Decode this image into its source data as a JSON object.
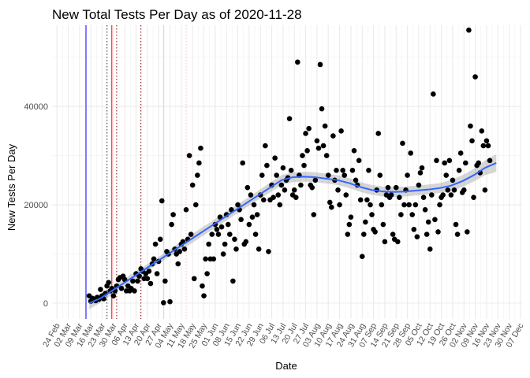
{
  "chart_data": {
    "type": "scatter",
    "title": "New Total Tests Per Day as of 2020-11-28",
    "xlabel": "Date",
    "ylabel": "New Tests Per Day",
    "x_range": [
      "2020-02-21",
      "2020-12-08"
    ],
    "ylim": [
      -3200,
      56500
    ],
    "y_ticks": [
      0,
      20000,
      40000
    ],
    "x_tick_labels": [
      "24 Feb",
      "02 Mar",
      "09 Mar",
      "16 Mar",
      "23 Mar",
      "30 Mar",
      "06 Apr",
      "13 Apr",
      "20 Apr",
      "27 Apr",
      "04 May",
      "11 May",
      "18 May",
      "25 May",
      "01 Jun",
      "08 Jun",
      "15 Jun",
      "22 Jun",
      "29 Jun",
      "06 Jul",
      "13 Jul",
      "20 Jul",
      "27 Jul",
      "03 Aug",
      "10 Aug",
      "17 Aug",
      "24 Aug",
      "31 Aug",
      "07 Sep",
      "14 Sep",
      "21 Sep",
      "28 Sep",
      "05 Oct",
      "12 Oct",
      "19 Oct",
      "26 Oct",
      "02 Nov",
      "09 Nov",
      "16 Nov",
      "23 Nov",
      "30 Nov",
      "07 Dec"
    ],
    "x_tick_dates": [
      "2020-02-24",
      "2020-03-02",
      "2020-03-09",
      "2020-03-16",
      "2020-03-23",
      "2020-03-30",
      "2020-04-06",
      "2020-04-13",
      "2020-04-20",
      "2020-04-27",
      "2020-05-04",
      "2020-05-11",
      "2020-05-18",
      "2020-05-25",
      "2020-06-01",
      "2020-06-08",
      "2020-06-15",
      "2020-06-22",
      "2020-06-29",
      "2020-07-06",
      "2020-07-13",
      "2020-07-20",
      "2020-07-27",
      "2020-08-03",
      "2020-08-10",
      "2020-08-17",
      "2020-08-24",
      "2020-08-31",
      "2020-09-07",
      "2020-09-14",
      "2020-09-21",
      "2020-09-28",
      "2020-10-05",
      "2020-10-12",
      "2020-10-19",
      "2020-10-26",
      "2020-11-02",
      "2020-11-09",
      "2020-11-16",
      "2020-11-23",
      "2020-11-30",
      "2020-12-07"
    ],
    "grid": true,
    "vlines": [
      {
        "date": "2020-03-13",
        "color": "#0000ff",
        "style": "solid"
      },
      {
        "date": "2020-03-26",
        "color": "#333333",
        "style": "dotted"
      },
      {
        "date": "2020-03-29",
        "color": "#ff0000",
        "style": "solid"
      },
      {
        "date": "2020-04-01",
        "color": "#8b0000",
        "style": "dotted"
      },
      {
        "date": "2020-04-16",
        "color": "#8b0000",
        "style": "dotted"
      },
      {
        "date": "2020-04-30",
        "color": "#ffc0cb",
        "style": "solid"
      },
      {
        "date": "2020-05-14",
        "color": "#ffc0cb",
        "style": "dotted"
      }
    ],
    "points": [
      [
        "2020-03-15",
        1500
      ],
      [
        "2020-03-16",
        400
      ],
      [
        "2020-03-17",
        1000
      ],
      [
        "2020-03-18",
        700
      ],
      [
        "2020-03-19",
        500
      ],
      [
        "2020-03-20",
        1200
      ],
      [
        "2020-03-21",
        800
      ],
      [
        "2020-03-22",
        2800
      ],
      [
        "2020-03-23",
        1500
      ],
      [
        "2020-03-24",
        900
      ],
      [
        "2020-03-25",
        2000
      ],
      [
        "2020-03-26",
        3500
      ],
      [
        "2020-03-27",
        4200
      ],
      [
        "2020-03-28",
        2500
      ],
      [
        "2020-03-29",
        3000
      ],
      [
        "2020-03-30",
        1500
      ],
      [
        "2020-03-31",
        2500
      ],
      [
        "2020-04-01",
        3500
      ],
      [
        "2020-04-02",
        4800
      ],
      [
        "2020-04-03",
        5200
      ],
      [
        "2020-04-04",
        3000
      ],
      [
        "2020-04-05",
        5500
      ],
      [
        "2020-04-06",
        4800
      ],
      [
        "2020-04-07",
        2500
      ],
      [
        "2020-04-08",
        3500
      ],
      [
        "2020-04-09",
        2500
      ],
      [
        "2020-04-10",
        3000
      ],
      [
        "2020-04-11",
        4500
      ],
      [
        "2020-04-12",
        2500
      ],
      [
        "2020-04-13",
        6000
      ],
      [
        "2020-04-14",
        4500
      ],
      [
        "2020-04-15",
        5500
      ],
      [
        "2020-04-16",
        7000
      ],
      [
        "2020-04-17",
        6500
      ],
      [
        "2020-04-18",
        5000
      ],
      [
        "2020-04-19",
        6000
      ],
      [
        "2020-04-20",
        5000
      ],
      [
        "2020-04-21",
        6500
      ],
      [
        "2020-04-22",
        4000
      ],
      [
        "2020-04-23",
        8000
      ],
      [
        "2020-04-24",
        9000
      ],
      [
        "2020-04-25",
        12000
      ],
      [
        "2020-04-26",
        6000
      ],
      [
        "2020-04-27",
        8500
      ],
      [
        "2020-04-28",
        13000
      ],
      [
        "2020-04-29",
        20800
      ],
      [
        "2020-04-30",
        100
      ],
      [
        "2020-05-01",
        4500
      ],
      [
        "2020-05-02",
        10500
      ],
      [
        "2020-05-03",
        10000
      ],
      [
        "2020-05-04",
        300
      ],
      [
        "2020-05-05",
        16000
      ],
      [
        "2020-05-06",
        18000
      ],
      [
        "2020-05-07",
        11000
      ],
      [
        "2020-05-08",
        10000
      ],
      [
        "2020-05-09",
        8000
      ],
      [
        "2020-05-10",
        10500
      ],
      [
        "2020-05-11",
        12000
      ],
      [
        "2020-05-12",
        12500
      ],
      [
        "2020-05-13",
        11000
      ],
      [
        "2020-05-14",
        19000
      ],
      [
        "2020-05-15",
        13000
      ],
      [
        "2020-05-16",
        30000
      ],
      [
        "2020-05-17",
        14000
      ],
      [
        "2020-05-18",
        24000
      ],
      [
        "2020-05-19",
        5000
      ],
      [
        "2020-05-20",
        20000
      ],
      [
        "2020-05-21",
        26000
      ],
      [
        "2020-05-22",
        28500
      ],
      [
        "2020-05-23",
        31500
      ],
      [
        "2020-05-24",
        3500
      ],
      [
        "2020-05-25",
        1500
      ],
      [
        "2020-05-26",
        9000
      ],
      [
        "2020-05-27",
        6000
      ],
      [
        "2020-05-28",
        12000
      ],
      [
        "2020-05-29",
        9000
      ],
      [
        "2020-05-30",
        14000
      ],
      [
        "2020-05-31",
        9000
      ],
      [
        "2020-06-01",
        16000
      ],
      [
        "2020-06-02",
        15000
      ],
      [
        "2020-06-03",
        14000
      ],
      [
        "2020-06-04",
        17500
      ],
      [
        "2020-06-05",
        15500
      ],
      [
        "2020-06-06",
        10000
      ],
      [
        "2020-06-07",
        12000
      ],
      [
        "2020-06-08",
        18000
      ],
      [
        "2020-06-09",
        16000
      ],
      [
        "2020-06-10",
        14000
      ],
      [
        "2020-06-11",
        19000
      ],
      [
        "2020-06-12",
        4500
      ],
      [
        "2020-06-13",
        13000
      ],
      [
        "2020-06-14",
        11000
      ],
      [
        "2020-06-15",
        20000
      ],
      [
        "2020-06-16",
        19000
      ],
      [
        "2020-06-17",
        17000
      ],
      [
        "2020-06-18",
        28500
      ],
      [
        "2020-06-19",
        12000
      ],
      [
        "2020-06-20",
        12500
      ],
      [
        "2020-06-21",
        23500
      ],
      [
        "2020-06-22",
        16000
      ],
      [
        "2020-06-23",
        22000
      ],
      [
        "2020-06-24",
        17500
      ],
      [
        "2020-06-25",
        20000
      ],
      [
        "2020-06-26",
        14000
      ],
      [
        "2020-06-27",
        18000
      ],
      [
        "2020-06-28",
        11000
      ],
      [
        "2020-06-29",
        22000
      ],
      [
        "2020-06-30",
        26000
      ],
      [
        "2020-07-01",
        21000
      ],
      [
        "2020-07-02",
        32000
      ],
      [
        "2020-07-03",
        28000
      ],
      [
        "2020-07-04",
        10500
      ],
      [
        "2020-07-05",
        21000
      ],
      [
        "2020-07-06",
        24000
      ],
      [
        "2020-07-07",
        21500
      ],
      [
        "2020-07-08",
        29500
      ],
      [
        "2020-07-09",
        26000
      ],
      [
        "2020-07-10",
        22000
      ],
      [
        "2020-07-11",
        20000
      ],
      [
        "2020-07-12",
        24000
      ],
      [
        "2020-07-13",
        27500
      ],
      [
        "2020-07-14",
        23000
      ],
      [
        "2020-07-15",
        25000
      ],
      [
        "2020-07-16",
        25500
      ],
      [
        "2020-07-17",
        37500
      ],
      [
        "2020-07-18",
        27000
      ],
      [
        "2020-07-19",
        22000
      ],
      [
        "2020-07-20",
        23000
      ],
      [
        "2020-07-21",
        21500
      ],
      [
        "2020-07-22",
        49000
      ],
      [
        "2020-07-23",
        26000
      ],
      [
        "2020-07-24",
        24000
      ],
      [
        "2020-07-25",
        30000
      ],
      [
        "2020-07-26",
        28000
      ],
      [
        "2020-07-27",
        34500
      ],
      [
        "2020-07-28",
        31000
      ],
      [
        "2020-07-29",
        35500
      ],
      [
        "2020-07-30",
        24000
      ],
      [
        "2020-07-31",
        23500
      ],
      [
        "2020-08-01",
        18000
      ],
      [
        "2020-08-02",
        25000
      ],
      [
        "2020-08-03",
        33000
      ],
      [
        "2020-08-04",
        31500
      ],
      [
        "2020-08-05",
        48500
      ],
      [
        "2020-08-06",
        39500
      ],
      [
        "2020-08-07",
        32000
      ],
      [
        "2020-08-08",
        36000
      ],
      [
        "2020-08-09",
        30000
      ],
      [
        "2020-08-10",
        26000
      ],
      [
        "2020-08-11",
        20500
      ],
      [
        "2020-08-12",
        19500
      ],
      [
        "2020-08-13",
        34000
      ],
      [
        "2020-08-14",
        25000
      ],
      [
        "2020-08-15",
        27000
      ],
      [
        "2020-08-16",
        23000
      ],
      [
        "2020-08-17",
        20000
      ],
      [
        "2020-08-18",
        35000
      ],
      [
        "2020-08-19",
        27000
      ],
      [
        "2020-08-20",
        26000
      ],
      [
        "2020-08-21",
        22000
      ],
      [
        "2020-08-22",
        14000
      ],
      [
        "2020-08-23",
        16000
      ],
      [
        "2020-08-24",
        17500
      ],
      [
        "2020-08-25",
        27000
      ],
      [
        "2020-08-26",
        31000
      ],
      [
        "2020-08-27",
        25000
      ],
      [
        "2020-08-28",
        24000
      ],
      [
        "2020-08-29",
        29000
      ],
      [
        "2020-08-30",
        21000
      ],
      [
        "2020-08-31",
        9500
      ],
      [
        "2020-09-01",
        14000
      ],
      [
        "2020-09-02",
        16500
      ],
      [
        "2020-09-03",
        21000
      ],
      [
        "2020-09-04",
        27000
      ],
      [
        "2020-09-05",
        20000
      ],
      [
        "2020-09-06",
        18000
      ],
      [
        "2020-09-07",
        15000
      ],
      [
        "2020-09-08",
        14500
      ],
      [
        "2020-09-09",
        23000
      ],
      [
        "2020-09-10",
        34500
      ],
      [
        "2020-09-11",
        26000
      ],
      [
        "2020-09-12",
        20000
      ],
      [
        "2020-09-13",
        16000
      ],
      [
        "2020-09-14",
        12500
      ],
      [
        "2020-09-15",
        22000
      ],
      [
        "2020-09-16",
        23500
      ],
      [
        "2020-09-17",
        21500
      ],
      [
        "2020-09-18",
        22000
      ],
      [
        "2020-09-19",
        14000
      ],
      [
        "2020-09-20",
        13000
      ],
      [
        "2020-09-21",
        23500
      ],
      [
        "2020-09-22",
        12500
      ],
      [
        "2020-09-23",
        21500
      ],
      [
        "2020-09-24",
        18000
      ],
      [
        "2020-09-25",
        32500
      ],
      [
        "2020-09-26",
        20000
      ],
      [
        "2020-09-27",
        23000
      ],
      [
        "2020-09-28",
        26000
      ],
      [
        "2020-09-29",
        20000
      ],
      [
        "2020-09-30",
        30500
      ],
      [
        "2020-10-01",
        18000
      ],
      [
        "2020-10-02",
        15000
      ],
      [
        "2020-10-03",
        20000
      ],
      [
        "2020-10-04",
        13500
      ],
      [
        "2020-10-05",
        24000
      ],
      [
        "2020-10-06",
        26500
      ],
      [
        "2020-10-07",
        27500
      ],
      [
        "2020-10-08",
        21500
      ],
      [
        "2020-10-09",
        19000
      ],
      [
        "2020-10-10",
        14000
      ],
      [
        "2020-10-11",
        16500
      ],
      [
        "2020-10-12",
        11000
      ],
      [
        "2020-10-13",
        22000
      ],
      [
        "2020-10-14",
        42500
      ],
      [
        "2020-10-15",
        17000
      ],
      [
        "2020-10-16",
        29000
      ],
      [
        "2020-10-17",
        14500
      ],
      [
        "2020-10-18",
        20000
      ],
      [
        "2020-10-19",
        21500
      ],
      [
        "2020-10-20",
        22000
      ],
      [
        "2020-10-21",
        28500
      ],
      [
        "2020-10-22",
        26000
      ],
      [
        "2020-10-23",
        23000
      ],
      [
        "2020-10-24",
        29000
      ],
      [
        "2020-10-25",
        22000
      ],
      [
        "2020-10-26",
        25000
      ],
      [
        "2020-10-27",
        23000
      ],
      [
        "2020-10-28",
        16000
      ],
      [
        "2020-10-29",
        14000
      ],
      [
        "2020-10-30",
        27000
      ],
      [
        "2020-10-31",
        30500
      ],
      [
        "2020-11-01",
        22500
      ],
      [
        "2020-11-02",
        23000
      ],
      [
        "2020-11-03",
        28500
      ],
      [
        "2020-11-04",
        14500
      ],
      [
        "2020-11-05",
        55500
      ],
      [
        "2020-11-06",
        36000
      ],
      [
        "2020-11-07",
        33000
      ],
      [
        "2020-11-08",
        21500
      ],
      [
        "2020-11-09",
        46000
      ],
      [
        "2020-11-10",
        28000
      ],
      [
        "2020-11-11",
        28500
      ],
      [
        "2020-11-12",
        26500
      ],
      [
        "2020-11-13",
        35000
      ],
      [
        "2020-11-14",
        32000
      ],
      [
        "2020-11-15",
        23000
      ],
      [
        "2020-11-16",
        33000
      ],
      [
        "2020-11-17",
        32000
      ],
      [
        "2020-11-18",
        29000
      ]
    ],
    "smooth": [
      [
        "2020-03-15",
        0,
        1200
      ],
      [
        "2020-03-22",
        1000,
        900
      ],
      [
        "2020-03-29",
        2500,
        800
      ],
      [
        "2020-04-05",
        4000,
        800
      ],
      [
        "2020-04-12",
        5500,
        800
      ],
      [
        "2020-04-19",
        7000,
        700
      ],
      [
        "2020-04-26",
        8500,
        700
      ],
      [
        "2020-05-03",
        10000,
        700
      ],
      [
        "2020-05-10",
        11500,
        800
      ],
      [
        "2020-05-17",
        13000,
        900
      ],
      [
        "2020-05-24",
        14500,
        900
      ],
      [
        "2020-05-31",
        16000,
        900
      ],
      [
        "2020-06-07",
        17500,
        900
      ],
      [
        "2020-06-14",
        19000,
        900
      ],
      [
        "2020-06-21",
        20500,
        900
      ],
      [
        "2020-06-28",
        22000,
        900
      ],
      [
        "2020-07-05",
        23500,
        1000
      ],
      [
        "2020-07-12",
        25000,
        1000
      ],
      [
        "2020-07-19",
        25600,
        1000
      ],
      [
        "2020-07-26",
        25700,
        1000
      ],
      [
        "2020-08-02",
        25600,
        1000
      ],
      [
        "2020-08-09",
        25300,
        1000
      ],
      [
        "2020-08-16",
        25000,
        1000
      ],
      [
        "2020-08-23",
        24400,
        1000
      ],
      [
        "2020-08-30",
        23600,
        1000
      ],
      [
        "2020-09-06",
        23000,
        1000
      ],
      [
        "2020-09-13",
        22700,
        1000
      ],
      [
        "2020-09-20",
        22600,
        1000
      ],
      [
        "2020-09-27",
        22700,
        1000
      ],
      [
        "2020-10-04",
        22900,
        1000
      ],
      [
        "2020-10-11",
        23100,
        1000
      ],
      [
        "2020-10-18",
        23400,
        1000
      ],
      [
        "2020-10-25",
        23900,
        1100
      ],
      [
        "2020-11-01",
        24800,
        1200
      ],
      [
        "2020-11-08",
        26000,
        1300
      ],
      [
        "2020-11-15",
        27500,
        1500
      ],
      [
        "2020-11-22",
        28500,
        1800
      ]
    ],
    "smooth_color": "#3366ff"
  }
}
